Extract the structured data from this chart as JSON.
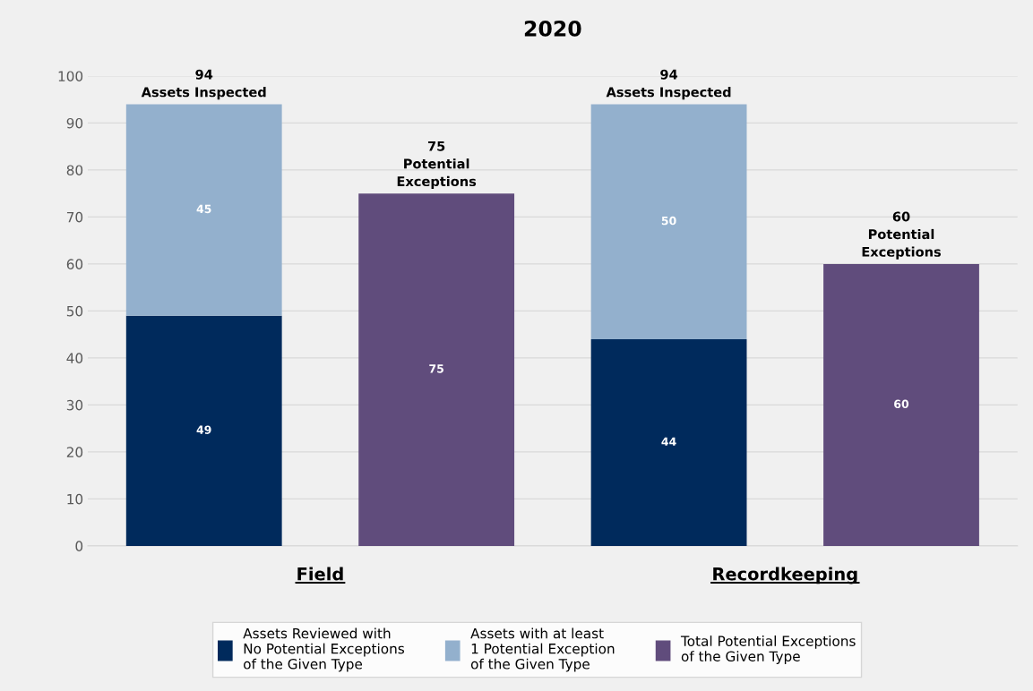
{
  "chart_data": {
    "type": "bar",
    "title": "2020",
    "categories": [
      null,
      null,
      null,
      null
    ],
    "series": [
      {
        "name": "Assets Reviewed with\nNo Potential Exceptions\nof the Given Type",
        "color": "#002a5c",
        "values": [
          49,
          null,
          44,
          null
        ]
      },
      {
        "name": "Assets with at least\n1 Potential Exception\nof the Given Type",
        "color": "#93b0cd",
        "values": [
          45,
          null,
          50,
          null
        ]
      },
      {
        "name": "Total Potential Exceptions\nof the Given Type",
        "color": "#604c7c",
        "values": [
          null,
          75,
          null,
          60
        ]
      }
    ],
    "stacked": true,
    "data_labels": true,
    "totals": [
      "94\nAssets Inspected",
      "75\nPotential\nExceptions",
      "94\nAssets Inspected",
      "60\nPotential\nExceptions"
    ],
    "annotations": [
      "Field",
      "Recordkeeping"
    ],
    "ylim": [
      0,
      100
    ],
    "yticks": [
      0,
      10,
      20,
      30,
      40,
      50,
      60,
      70,
      80,
      90,
      100
    ],
    "grid": "y",
    "legend": "bottom"
  }
}
